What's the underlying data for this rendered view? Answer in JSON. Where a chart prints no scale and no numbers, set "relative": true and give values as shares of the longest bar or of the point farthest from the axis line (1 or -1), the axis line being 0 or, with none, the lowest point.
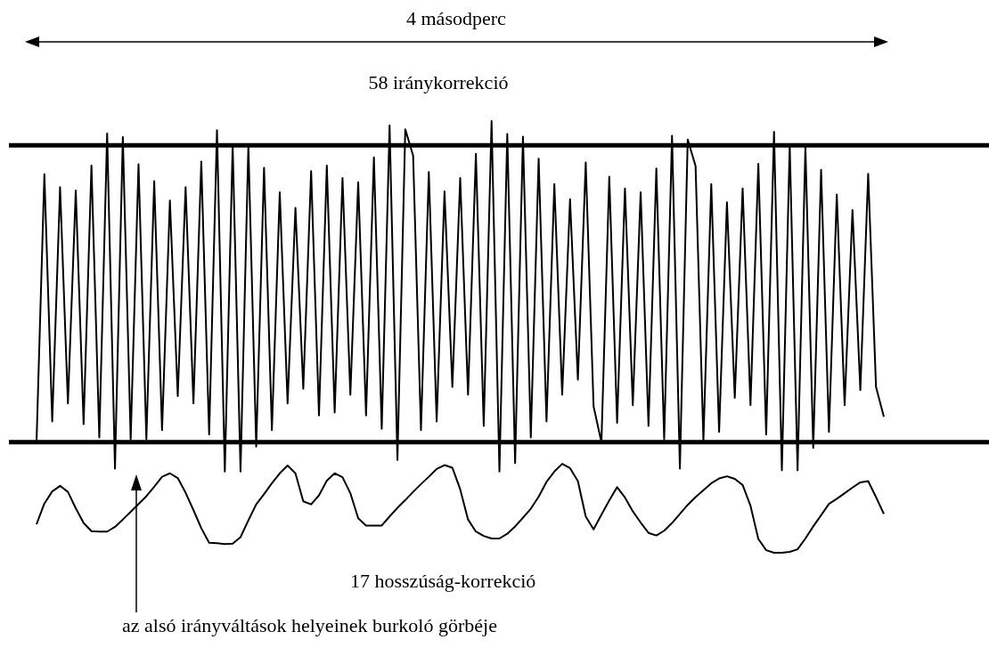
{
  "chart_data": {
    "type": "line",
    "title": "4 másodperc",
    "subtitle": "58 iránykorrekció",
    "relative": true,
    "tick_labels": false,
    "grid": false,
    "legend": false,
    "marker": "none",
    "annotations": [
      "17  hosszúság-korrekció",
      "az alsó irányváltások helyeinek burkoló görbéje"
    ],
    "ref_lines": [
      {
        "axis": "y",
        "value": 0.944,
        "color": "#000000"
      },
      {
        "axis": "y",
        "value": 0.256,
        "color": "#000000"
      }
    ],
    "categories": [
      null,
      null,
      null,
      null,
      null,
      null,
      null,
      null,
      null,
      null,
      null,
      null,
      null,
      null,
      null,
      null,
      null,
      null,
      null,
      null,
      null,
      null,
      null,
      null,
      null,
      null,
      null,
      null,
      null,
      null,
      null,
      null,
      null,
      null,
      null,
      null,
      null,
      null,
      null,
      null,
      null,
      null,
      null,
      null,
      null,
      null,
      null,
      null,
      null,
      null,
      null,
      null,
      null,
      null,
      null,
      null,
      null,
      null,
      null,
      null,
      null,
      null,
      null,
      null,
      null,
      null,
      null,
      null,
      null,
      null,
      null,
      null,
      null,
      null,
      null,
      null,
      null,
      null,
      null,
      null,
      null,
      null,
      null,
      null,
      null,
      null,
      null,
      null,
      null,
      null,
      null,
      null,
      null,
      null,
      null,
      null,
      null,
      null,
      null,
      null,
      null,
      null,
      null,
      null,
      null,
      null,
      null,
      null,
      null
    ],
    "series": [
      {
        "color": "#000000",
        "values": [
          0.256,
          0.877,
          0.304,
          0.847,
          0.346,
          0.839,
          0.298,
          0.897,
          0.267,
          0.971,
          0.195,
          0.963,
          0.263,
          0.9,
          0.263,
          0.861,
          0.284,
          0.816,
          0.363,
          0.847,
          0.346,
          0.906,
          0.274,
          0.979,
          0.188,
          0.944,
          0.188,
          0.944,
          0.246,
          0.892,
          0.284,
          0.835,
          0.346,
          0.799,
          0.38,
          0.884,
          0.318,
          0.897,
          0.325,
          0.868,
          0.366,
          0.858,
          0.318,
          0.916,
          0.287,
          0.99,
          0.215,
          0.981,
          0.92,
          0.284,
          0.882,
          0.304,
          0.837,
          0.384,
          0.868,
          0.366,
          0.924,
          0.294,
          1.0,
          0.188,
          0.97,
          0.208,
          0.964,
          0.267,
          0.913,
          0.304,
          0.854,
          0.366,
          0.819,
          0.401,
          0.904,
          0.339,
          0.256,
          0.871,
          0.301,
          0.844,
          0.342,
          0.835,
          0.294,
          0.89,
          0.263,
          0.966,
          0.195,
          0.957,
          0.896,
          0.26,
          0.854,
          0.28,
          0.812,
          0.359,
          0.844,
          0.342,
          0.901,
          0.274,
          0.975,
          0.191,
          0.944,
          0.191,
          0.94,
          0.243,
          0.887,
          0.28,
          0.83,
          0.342,
          0.794,
          0.377,
          0.878,
          0.384,
          0.315
        ]
      },
      {
        "color": "#000000",
        "values": [
          0.066,
          0.114,
          0.142,
          0.155,
          0.141,
          0.103,
          0.069,
          0.05,
          0.049,
          0.049,
          0.06,
          0.077,
          0.095,
          0.113,
          0.131,
          0.153,
          0.176,
          0.184,
          0.173,
          0.139,
          0.099,
          0.057,
          0.023,
          0.022,
          0.02,
          0.021,
          0.036,
          0.075,
          0.112,
          0.136,
          0.161,
          0.184,
          0.202,
          0.184,
          0.119,
          0.112,
          0.133,
          0.167,
          0.184,
          0.175,
          0.138,
          0.08,
          0.063,
          0.063,
          0.063,
          0.084,
          0.104,
          0.122,
          0.141,
          0.159,
          0.176,
          0.194,
          0.203,
          0.197,
          0.147,
          0.077,
          0.049,
          0.039,
          0.033,
          0.033,
          0.044,
          0.061,
          0.081,
          0.102,
          0.13,
          0.164,
          0.188,
          0.206,
          0.196,
          0.166,
          0.084,
          0.054,
          0.088,
          0.121,
          0.152,
          0.128,
          0.096,
          0.07,
          0.046,
          0.04,
          0.051,
          0.069,
          0.09,
          0.111,
          0.129,
          0.145,
          0.161,
          0.172,
          0.177,
          0.171,
          0.157,
          0.109,
          0.032,
          0.006,
          0,
          0,
          0.002,
          0.008,
          0.033,
          0.061,
          0.087,
          0.113,
          0.125,
          0.138,
          0.151,
          0.163,
          0.166,
          0.129,
          0.09
        ]
      }
    ]
  }
}
